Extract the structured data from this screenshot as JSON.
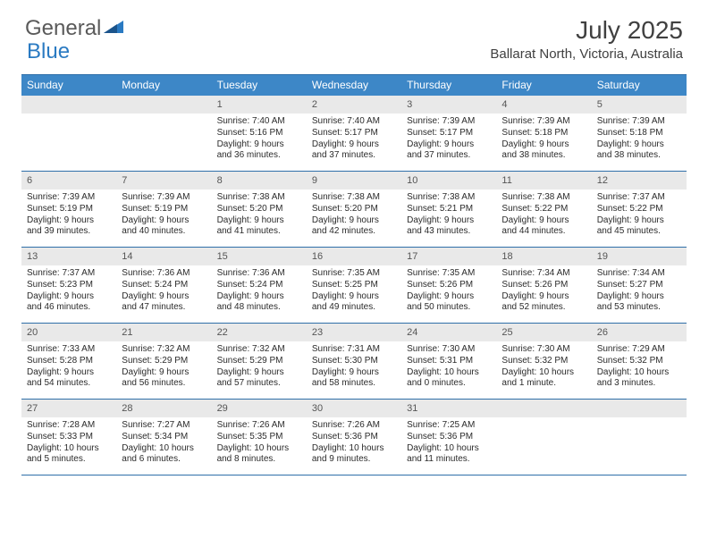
{
  "logo": {
    "part1": "General",
    "part2": "Blue"
  },
  "title": "July 2025",
  "subtitle": "Ballarat North, Victoria, Australia",
  "colors": {
    "header_bg": "#3d87c7",
    "border": "#2f6fa9",
    "daynum_bg": "#e9e9e9",
    "logo_gray": "#5a5a5a",
    "logo_blue": "#2a7ac2",
    "text": "#2b2b2b"
  },
  "weekdays": [
    "Sunday",
    "Monday",
    "Tuesday",
    "Wednesday",
    "Thursday",
    "Friday",
    "Saturday"
  ],
  "weeks": [
    [
      null,
      null,
      {
        "n": "1",
        "sr": "7:40 AM",
        "ss": "5:16 PM",
        "dl": "9 hours and 36 minutes."
      },
      {
        "n": "2",
        "sr": "7:40 AM",
        "ss": "5:17 PM",
        "dl": "9 hours and 37 minutes."
      },
      {
        "n": "3",
        "sr": "7:39 AM",
        "ss": "5:17 PM",
        "dl": "9 hours and 37 minutes."
      },
      {
        "n": "4",
        "sr": "7:39 AM",
        "ss": "5:18 PM",
        "dl": "9 hours and 38 minutes."
      },
      {
        "n": "5",
        "sr": "7:39 AM",
        "ss": "5:18 PM",
        "dl": "9 hours and 38 minutes."
      }
    ],
    [
      {
        "n": "6",
        "sr": "7:39 AM",
        "ss": "5:19 PM",
        "dl": "9 hours and 39 minutes."
      },
      {
        "n": "7",
        "sr": "7:39 AM",
        "ss": "5:19 PM",
        "dl": "9 hours and 40 minutes."
      },
      {
        "n": "8",
        "sr": "7:38 AM",
        "ss": "5:20 PM",
        "dl": "9 hours and 41 minutes."
      },
      {
        "n": "9",
        "sr": "7:38 AM",
        "ss": "5:20 PM",
        "dl": "9 hours and 42 minutes."
      },
      {
        "n": "10",
        "sr": "7:38 AM",
        "ss": "5:21 PM",
        "dl": "9 hours and 43 minutes."
      },
      {
        "n": "11",
        "sr": "7:38 AM",
        "ss": "5:22 PM",
        "dl": "9 hours and 44 minutes."
      },
      {
        "n": "12",
        "sr": "7:37 AM",
        "ss": "5:22 PM",
        "dl": "9 hours and 45 minutes."
      }
    ],
    [
      {
        "n": "13",
        "sr": "7:37 AM",
        "ss": "5:23 PM",
        "dl": "9 hours and 46 minutes."
      },
      {
        "n": "14",
        "sr": "7:36 AM",
        "ss": "5:24 PM",
        "dl": "9 hours and 47 minutes."
      },
      {
        "n": "15",
        "sr": "7:36 AM",
        "ss": "5:24 PM",
        "dl": "9 hours and 48 minutes."
      },
      {
        "n": "16",
        "sr": "7:35 AM",
        "ss": "5:25 PM",
        "dl": "9 hours and 49 minutes."
      },
      {
        "n": "17",
        "sr": "7:35 AM",
        "ss": "5:26 PM",
        "dl": "9 hours and 50 minutes."
      },
      {
        "n": "18",
        "sr": "7:34 AM",
        "ss": "5:26 PM",
        "dl": "9 hours and 52 minutes."
      },
      {
        "n": "19",
        "sr": "7:34 AM",
        "ss": "5:27 PM",
        "dl": "9 hours and 53 minutes."
      }
    ],
    [
      {
        "n": "20",
        "sr": "7:33 AM",
        "ss": "5:28 PM",
        "dl": "9 hours and 54 minutes."
      },
      {
        "n": "21",
        "sr": "7:32 AM",
        "ss": "5:29 PM",
        "dl": "9 hours and 56 minutes."
      },
      {
        "n": "22",
        "sr": "7:32 AM",
        "ss": "5:29 PM",
        "dl": "9 hours and 57 minutes."
      },
      {
        "n": "23",
        "sr": "7:31 AM",
        "ss": "5:30 PM",
        "dl": "9 hours and 58 minutes."
      },
      {
        "n": "24",
        "sr": "7:30 AM",
        "ss": "5:31 PM",
        "dl": "10 hours and 0 minutes."
      },
      {
        "n": "25",
        "sr": "7:30 AM",
        "ss": "5:32 PM",
        "dl": "10 hours and 1 minute."
      },
      {
        "n": "26",
        "sr": "7:29 AM",
        "ss": "5:32 PM",
        "dl": "10 hours and 3 minutes."
      }
    ],
    [
      {
        "n": "27",
        "sr": "7:28 AM",
        "ss": "5:33 PM",
        "dl": "10 hours and 5 minutes."
      },
      {
        "n": "28",
        "sr": "7:27 AM",
        "ss": "5:34 PM",
        "dl": "10 hours and 6 minutes."
      },
      {
        "n": "29",
        "sr": "7:26 AM",
        "ss": "5:35 PM",
        "dl": "10 hours and 8 minutes."
      },
      {
        "n": "30",
        "sr": "7:26 AM",
        "ss": "5:36 PM",
        "dl": "10 hours and 9 minutes."
      },
      {
        "n": "31",
        "sr": "7:25 AM",
        "ss": "5:36 PM",
        "dl": "10 hours and 11 minutes."
      },
      null,
      null
    ]
  ],
  "labels": {
    "sunrise": "Sunrise: ",
    "sunset": "Sunset: ",
    "daylight": "Daylight: "
  }
}
